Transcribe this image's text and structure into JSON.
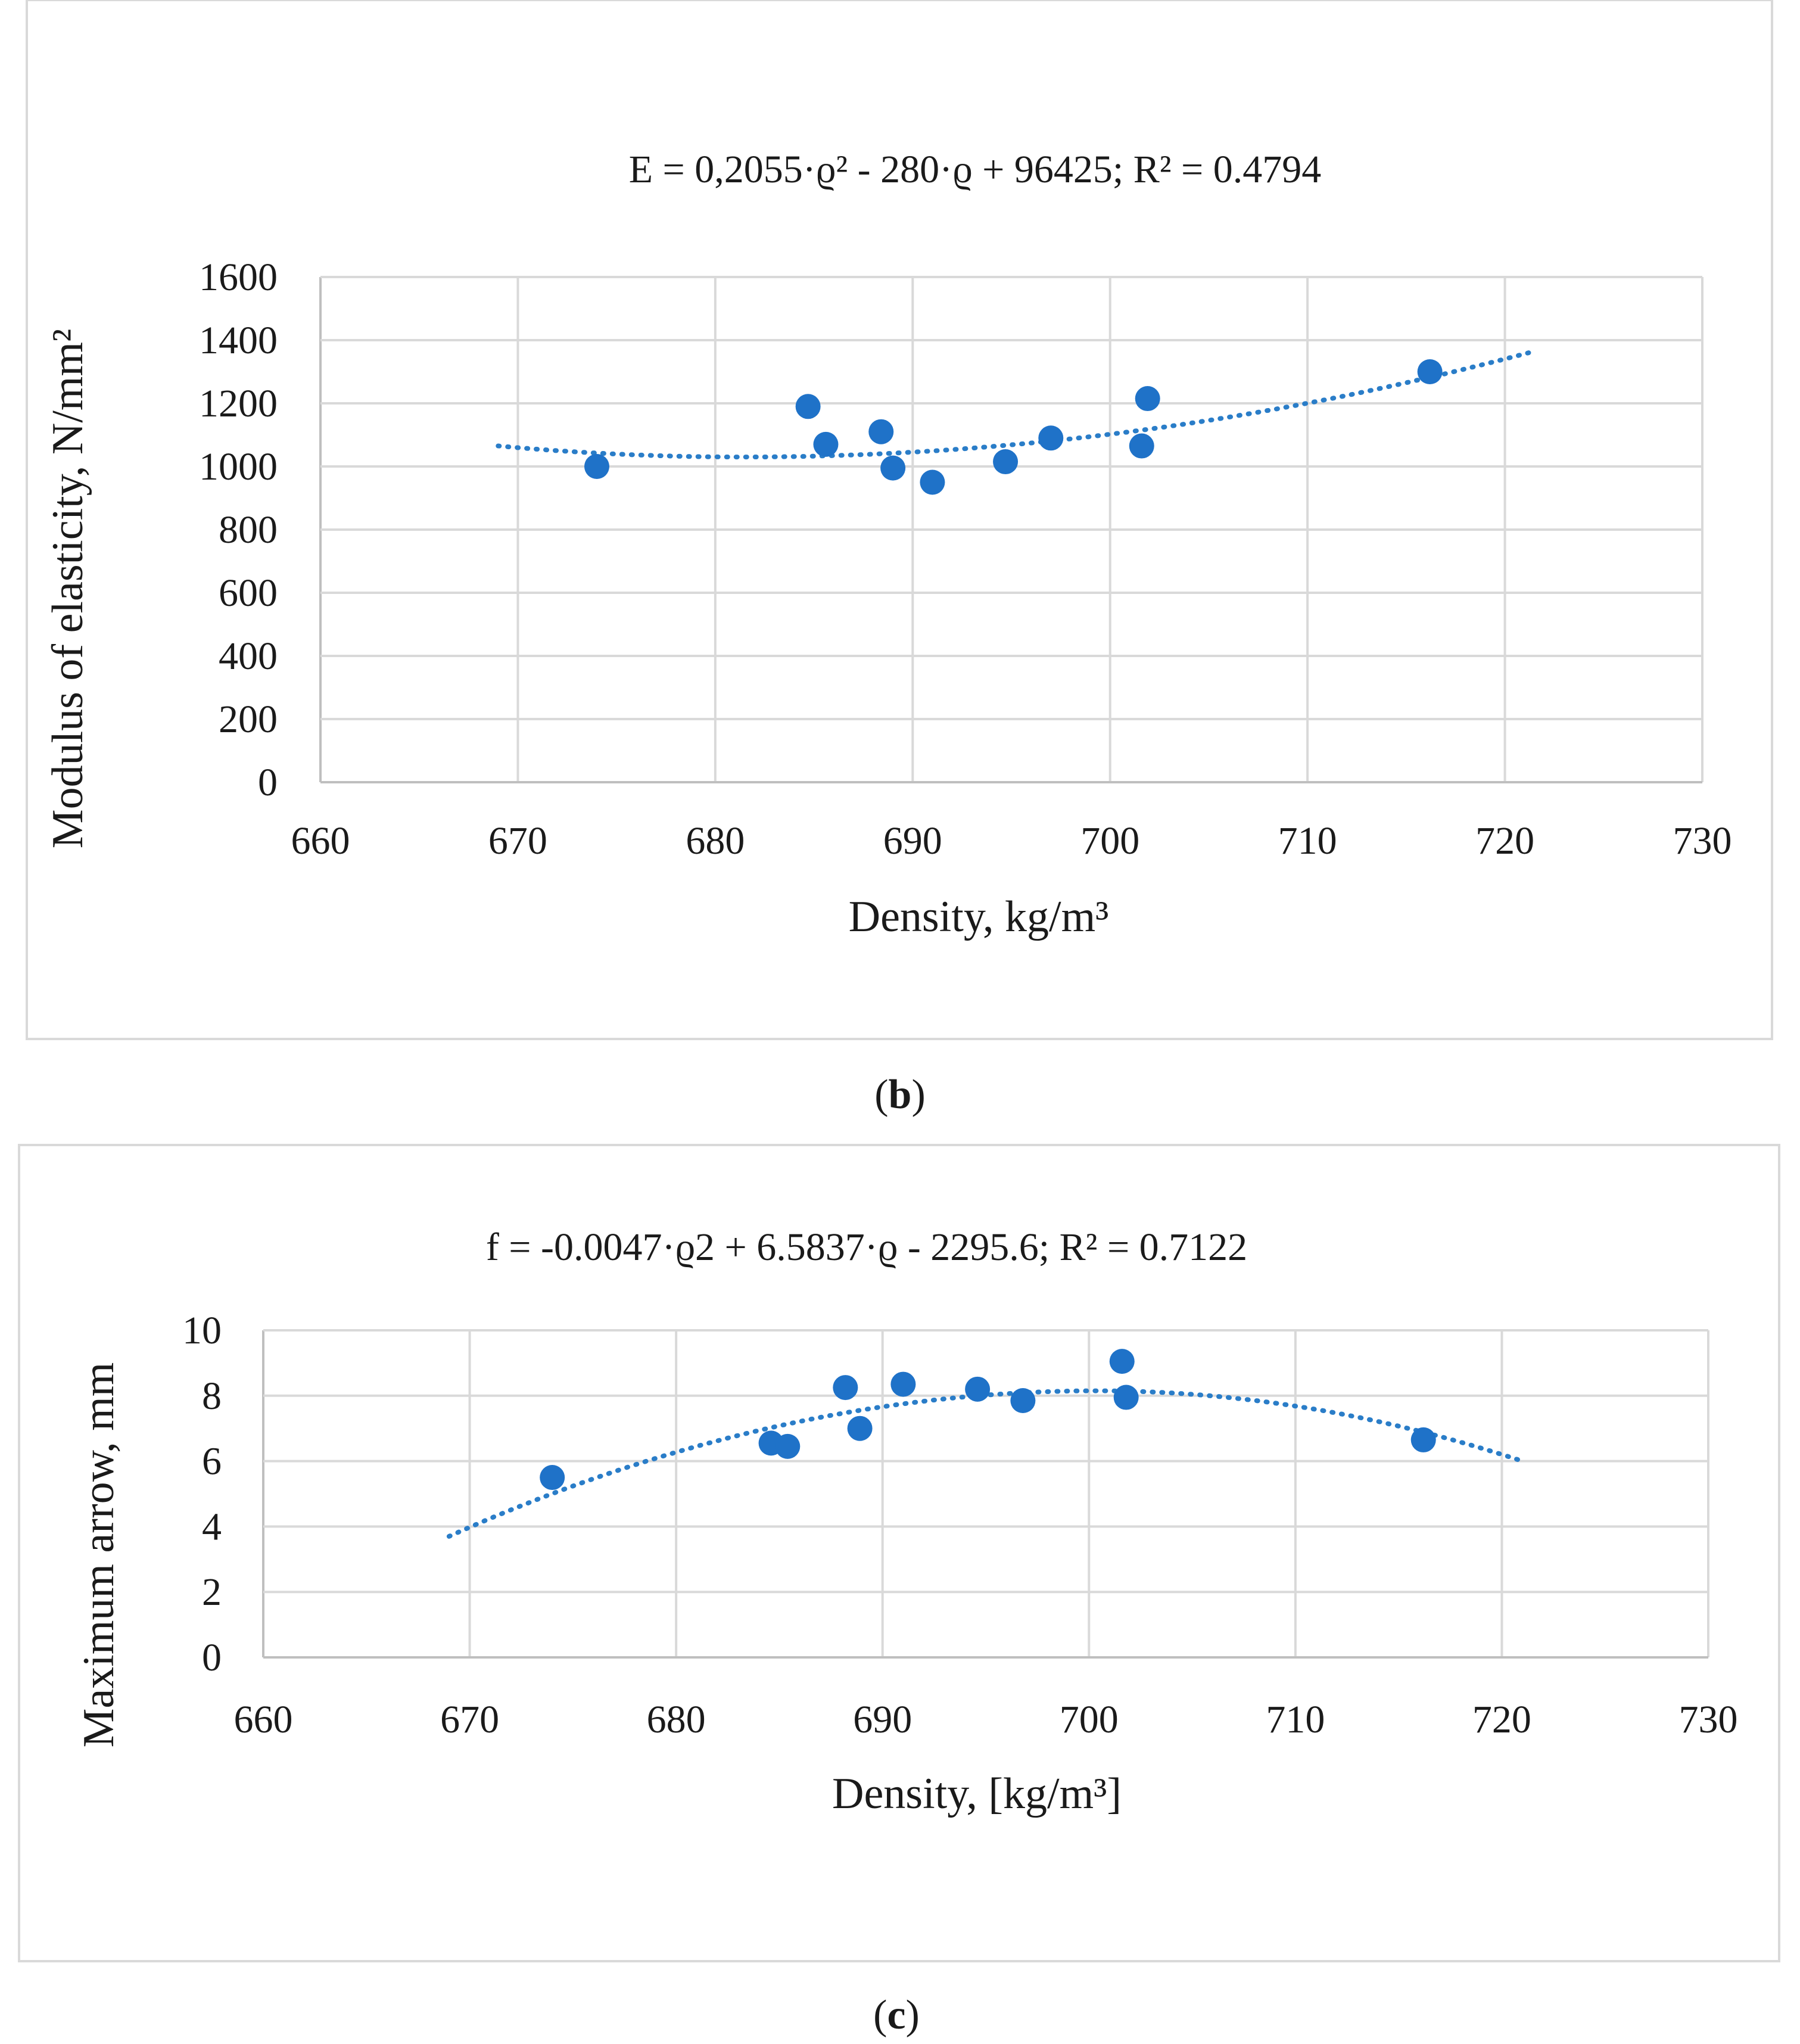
{
  "colors": {
    "marker": "#1f72c8",
    "trendline": "#2a7dc8",
    "grid": "#d9d9d9",
    "frame": "#d9d9d9",
    "text": "#1a1a1a"
  },
  "chart_data": [
    {
      "type": "scatter",
      "panel_label": "(b)",
      "panel_letter": "b",
      "title": "E = 0,2055·ϱ² - 280·ϱ + 96425; R² = 0.4794",
      "xlabel": "Density, kg/m³",
      "ylabel": "Modulus of elasticity, N/mm²",
      "xlim": [
        660,
        730
      ],
      "ylim": [
        0,
        1600
      ],
      "xticks": [
        660,
        670,
        680,
        690,
        700,
        710,
        720,
        730
      ],
      "yticks": [
        0,
        200,
        400,
        600,
        800,
        1000,
        1200,
        1400,
        1600
      ],
      "grid": true,
      "series": [
        {
          "name": "Modulus of elasticity",
          "x": [
            674,
            684.7,
            685.6,
            688.4,
            689.0,
            691.0,
            694.7,
            697.0,
            701.6,
            701.9,
            716.2
          ],
          "y": [
            1000,
            1190,
            1070,
            1110,
            995,
            950,
            1015,
            1090,
            1065,
            1215,
            1300
          ]
        }
      ],
      "trendline": {
        "type": "polynomial",
        "order": 2,
        "x_range": [
          669,
          721.5
        ],
        "coefficients": [
          0.2055,
          -280,
          96425
        ],
        "vertex_x": 681.4,
        "vertex_y": 1030,
        "end_y": [
          1065,
          1365
        ]
      }
    },
    {
      "type": "scatter",
      "panel_label": "(c)",
      "panel_letter": "c",
      "title": "f = -0.0047·ϱ2 + 6.5837·ϱ - 2295.6; R² = 0.7122",
      "xlabel": "Density, [kg/m³]",
      "ylabel": "Maximum arrow, mm",
      "xlim": [
        660,
        730
      ],
      "ylim": [
        0,
        10
      ],
      "xticks": [
        660,
        670,
        680,
        690,
        700,
        710,
        720,
        730
      ],
      "yticks": [
        0,
        2,
        4,
        6,
        8,
        10
      ],
      "grid": true,
      "series": [
        {
          "name": "Maximum arrow",
          "x": [
            674,
            684.6,
            685.4,
            688.2,
            688.9,
            691.0,
            694.6,
            696.8,
            701.6,
            701.8,
            716.2
          ],
          "y": [
            5.5,
            6.55,
            6.45,
            8.25,
            7.0,
            8.35,
            8.2,
            7.85,
            9.05,
            7.95,
            6.65
          ]
        }
      ],
      "trendline": {
        "type": "polynomial",
        "order": 2,
        "x_range": [
          669,
          721
        ],
        "coefficients": [
          -0.0047,
          6.5837,
          -2295.6
        ],
        "vertex_x": 700.4,
        "vertex_y": 8.15,
        "end_y": [
          3.7,
          6.0
        ]
      }
    }
  ]
}
